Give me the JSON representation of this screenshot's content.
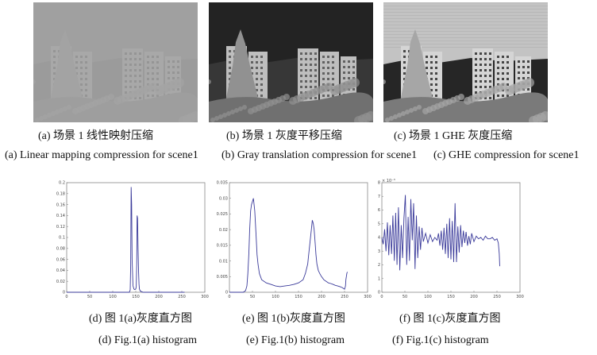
{
  "figure": {
    "photos": [
      {
        "caption_cn": "(a)  场景 1  线性映射压缩",
        "caption_en": "(a) Linear mapping compression for scene1",
        "style": "linear"
      },
      {
        "caption_cn": "(b)  场景 1  灰度平移压缩",
        "caption_en": "(b) Gray translation compression for scene1",
        "style": "gray"
      },
      {
        "caption_cn": "(c)  场景 1 GHE 灰度压缩",
        "caption_en": "(c) GHE compression for scene1",
        "style": "ghe"
      }
    ],
    "histograms": [
      {
        "caption_cn": "(d)  图 1(a)灰度直方图",
        "caption_en": "(d) Fig.1(a) histogram"
      },
      {
        "caption_cn": "(e)  图 1(b)灰度直方图",
        "caption_en": "(e) Fig.1(b) histogram"
      },
      {
        "caption_cn": "(f)  图 1(c)灰度直方图",
        "caption_en": "(f) Fig.1(c) histogram"
      }
    ]
  },
  "chart_data": [
    {
      "type": "line",
      "xlim": [
        0,
        300
      ],
      "ylim": [
        0,
        0.2
      ],
      "xticks": [
        "0",
        "50",
        "100",
        "150",
        "200",
        "250",
        "300"
      ],
      "yticks": [
        "0",
        "0.02",
        "0.04",
        "0.06",
        "0.08",
        "0.1",
        "0.12",
        "0.14",
        "0.16",
        "0.18",
        "0.2"
      ],
      "series": [
        {
          "color": "#3a3a9a",
          "x": [
            0,
            136,
            138,
            139,
            140,
            141,
            142,
            144,
            146,
            148,
            150,
            151,
            152,
            153,
            154,
            155,
            156,
            157,
            158,
            160,
            163,
            166,
            170,
            180,
            200,
            256
          ],
          "y": [
            0,
            0,
            0.004,
            0.05,
            0.192,
            0.16,
            0.06,
            0.012,
            0.006,
            0.005,
            0.006,
            0.01,
            0.05,
            0.14,
            0.135,
            0.08,
            0.04,
            0.015,
            0.006,
            0.002,
            0.001,
            0,
            0,
            0,
            0,
            0
          ]
        }
      ]
    },
    {
      "type": "line",
      "xlim": [
        0,
        300
      ],
      "ylim": [
        0,
        0.035
      ],
      "xticks": [
        "0",
        "50",
        "100",
        "150",
        "200",
        "250",
        "300"
      ],
      "yticks": [
        "0",
        "0.005",
        "0.01",
        "0.015",
        "0.02",
        "0.025",
        "0.03",
        "0.035"
      ],
      "series": [
        {
          "color": "#3a3a9a",
          "x": [
            0,
            30,
            35,
            38,
            40,
            42,
            44,
            46,
            48,
            50,
            52,
            55,
            58,
            60,
            62,
            65,
            70,
            80,
            90,
            100,
            110,
            120,
            130,
            140,
            150,
            160,
            165,
            170,
            172,
            175,
            178,
            180,
            182,
            184,
            186,
            188,
            190,
            193,
            196,
            200,
            205,
            210,
            215,
            220,
            225,
            230,
            235,
            240,
            245,
            250,
            252,
            253,
            255,
            256
          ],
          "y": [
            0,
            0,
            0.0005,
            0.002,
            0.006,
            0.012,
            0.02,
            0.026,
            0.028,
            0.029,
            0.03,
            0.026,
            0.018,
            0.012,
            0.009,
            0.006,
            0.004,
            0.003,
            0.0025,
            0.002,
            0.0018,
            0.002,
            0.0022,
            0.0025,
            0.003,
            0.004,
            0.006,
            0.009,
            0.012,
            0.016,
            0.02,
            0.023,
            0.022,
            0.02,
            0.016,
            0.012,
            0.009,
            0.007,
            0.006,
            0.005,
            0.004,
            0.0035,
            0.003,
            0.0028,
            0.0025,
            0.0022,
            0.002,
            0.0018,
            0.0015,
            0.001,
            0.002,
            0.004,
            0.006,
            0.0065
          ]
        }
      ]
    },
    {
      "type": "line",
      "xlim": [
        0,
        300
      ],
      "ylim": [
        0,
        8
      ],
      "ylabel_scale": "× 10⁻³",
      "xticks": [
        "0",
        "50",
        "100",
        "150",
        "200",
        "250",
        "300"
      ],
      "yticks": [
        "0",
        "1",
        "2",
        "3",
        "4",
        "5",
        "6",
        "7",
        "8"
      ],
      "series": [
        {
          "color": "#3a3a9a",
          "x": [
            0,
            3,
            6,
            9,
            12,
            15,
            18,
            21,
            24,
            27,
            30,
            33,
            36,
            39,
            42,
            45,
            48,
            51,
            54,
            57,
            60,
            63,
            66,
            69,
            72,
            75,
            78,
            81,
            84,
            87,
            90,
            95,
            100,
            105,
            110,
            115,
            120,
            123,
            126,
            129,
            132,
            135,
            138,
            141,
            144,
            147,
            150,
            153,
            156,
            159,
            162,
            165,
            168,
            171,
            174,
            177,
            180,
            183,
            186,
            189,
            192,
            195,
            200,
            205,
            210,
            215,
            220,
            225,
            230,
            235,
            240,
            245,
            250,
            253,
            255,
            256
          ],
          "y": [
            4.0,
            3.5,
            4.6,
            3.0,
            5.1,
            2.7,
            4.9,
            2.8,
            5.6,
            2.3,
            5.8,
            2.0,
            6.2,
            1.6,
            4.9,
            2.5,
            5.4,
            7.1,
            2.0,
            5.5,
            2.3,
            6.8,
            3.8,
            6.5,
            1.7,
            5.6,
            2.5,
            4.8,
            3.1,
            4.7,
            3.7,
            4.3,
            3.6,
            4.2,
            3.7,
            4.0,
            3.8,
            4.3,
            3.4,
            4.5,
            3.1,
            4.7,
            2.8,
            5.0,
            2.5,
            5.4,
            2.4,
            5.2,
            2.2,
            6.5,
            2.2,
            4.8,
            2.9,
            4.9,
            3.3,
            4.5,
            3.6,
            4.4,
            3.4,
            4.1,
            3.5,
            4.3,
            3.7,
            4.1,
            3.9,
            4.0,
            3.8,
            4.1,
            3.9,
            3.9,
            4.0,
            3.8,
            3.9,
            3.6,
            2.8,
            1.9
          ]
        }
      ]
    }
  ]
}
